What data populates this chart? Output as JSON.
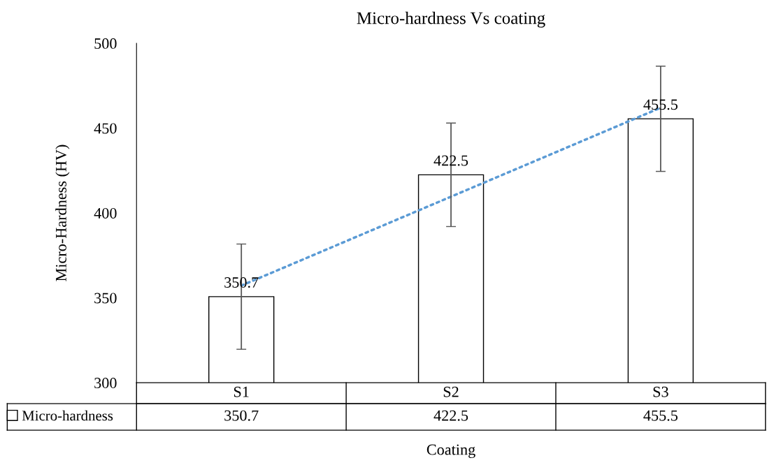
{
  "chart_data": {
    "type": "bar",
    "title": "Micro-hardness Vs coating",
    "xlabel": "Coating",
    "ylabel": "Micro-Hardness (HV)",
    "categories": [
      "S1",
      "S2",
      "S3"
    ],
    "series": [
      {
        "name": "Micro-hardness",
        "color": "#ffffff",
        "values": [
          350.7,
          422.5,
          455.5
        ],
        "errors": [
          31,
          30.5,
          31
        ],
        "value_labels": [
          "350.7",
          "422.5",
          "455.5"
        ]
      },
      {
        "type": "line",
        "color": "#5b9bd5",
        "values": [
          357.2,
          409.6,
          462.0
        ],
        "line_style": "dotted"
      }
    ],
    "ylim": [
      300,
      500
    ],
    "yticks": [
      300,
      350,
      400,
      450,
      500
    ],
    "grid": false,
    "legend": "bottom"
  }
}
